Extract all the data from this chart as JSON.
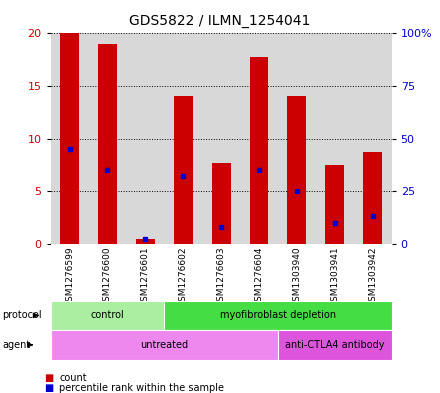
{
  "title": "GDS5822 / ILMN_1254041",
  "samples": [
    "GSM1276599",
    "GSM1276600",
    "GSM1276601",
    "GSM1276602",
    "GSM1276603",
    "GSM1276604",
    "GSM1303940",
    "GSM1303941",
    "GSM1303942"
  ],
  "counts": [
    20.0,
    19.0,
    0.4,
    14.0,
    7.7,
    17.8,
    14.0,
    7.5,
    8.7
  ],
  "percentile_ranks": [
    45,
    35,
    2,
    32,
    8,
    35,
    25,
    10,
    13
  ],
  "ylim_left": [
    0,
    20
  ],
  "ylim_right": [
    0,
    100
  ],
  "yticks_left": [
    0,
    5,
    10,
    15,
    20
  ],
  "yticks_right": [
    0,
    25,
    50,
    75,
    100
  ],
  "ytick_labels_right": [
    "0",
    "25",
    "50",
    "75",
    "100%"
  ],
  "bar_color": "#cc0000",
  "dot_color": "#0000cc",
  "bar_width": 0.5,
  "protocol_groups": [
    {
      "label": "control",
      "start": 0,
      "end": 3,
      "color": "#aaeea0"
    },
    {
      "label": "myofibroblast depletion",
      "start": 3,
      "end": 9,
      "color": "#44dd44"
    }
  ],
  "agent_groups": [
    {
      "label": "untreated",
      "start": 0,
      "end": 6,
      "color": "#ee88ee"
    },
    {
      "label": "anti-CTLA4 antibody",
      "start": 6,
      "end": 9,
      "color": "#dd55dd"
    }
  ],
  "grid_color": "black",
  "bg_color": "#d8d8d8",
  "left_axis_color": "#cc0000",
  "right_axis_color": "#0000cc",
  "legend_count_color": "#cc0000",
  "legend_pct_color": "#0000cc"
}
